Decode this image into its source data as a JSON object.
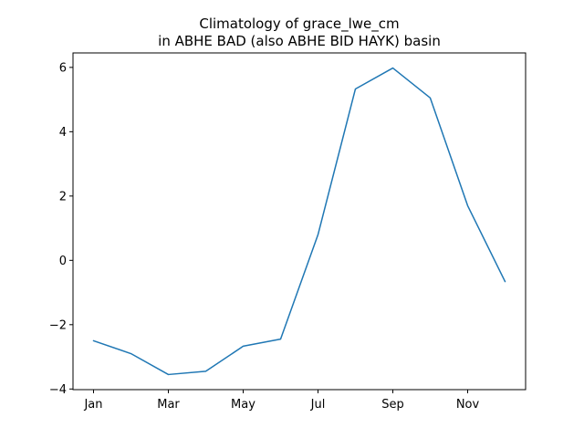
{
  "chart_data": {
    "type": "line",
    "title_line1": "Climatology of grace_lwe_cm",
    "title_line2": "in ABHE BAD (also ABHE BID HAYK) basin",
    "xlabel": "",
    "ylabel": "",
    "x": [
      "Jan",
      "Feb",
      "Mar",
      "Apr",
      "May",
      "Jun",
      "Jul",
      "Aug",
      "Sep",
      "Oct",
      "Nov",
      "Dec"
    ],
    "x_tick_labels": [
      "Jan",
      "Mar",
      "May",
      "Jul",
      "Sep",
      "Nov"
    ],
    "y_ticks": [
      -4,
      -2,
      0,
      2,
      4,
      6
    ],
    "y_tick_labels": [
      "−4",
      "−2",
      "0",
      "2",
      "4",
      "6"
    ],
    "ylim": [
      -4.02,
      6.45
    ],
    "grid": false,
    "series": [
      {
        "color": "#1f77b4",
        "values": [
          -2.5,
          -2.9,
          -3.55,
          -3.45,
          -2.67,
          -2.45,
          0.8,
          5.33,
          5.98,
          5.05,
          1.7,
          -0.66
        ]
      }
    ]
  }
}
